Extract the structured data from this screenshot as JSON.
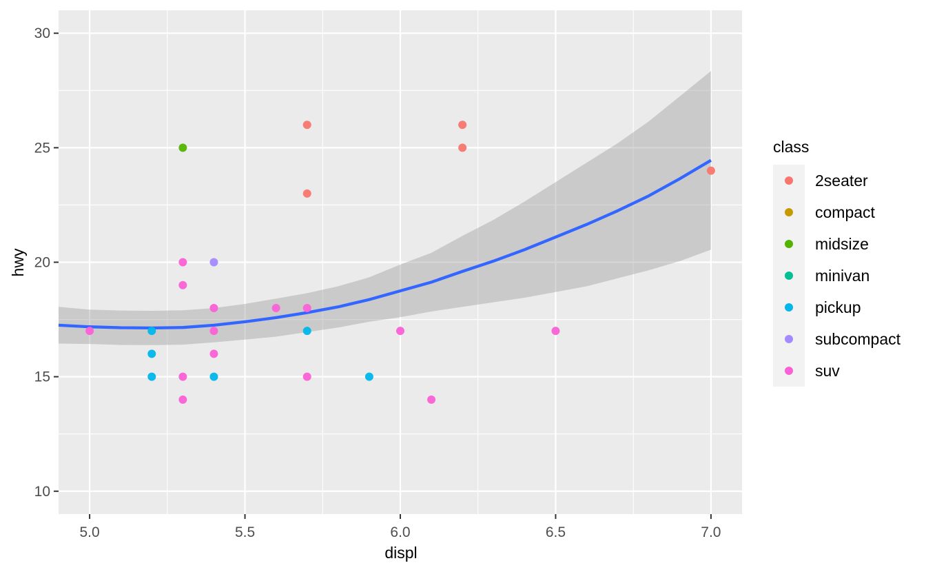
{
  "chart_data": {
    "type": "scatter",
    "xlabel": "displ",
    "ylabel": "hwy",
    "xlim": [
      4.9,
      7.1
    ],
    "ylim": [
      9,
      31
    ],
    "x_ticks": [
      5.0,
      5.5,
      6.0,
      6.5,
      7.0
    ],
    "x_tick_labels": [
      "5.0",
      "5.5",
      "6.0",
      "6.5",
      "7.0"
    ],
    "x_minor": [
      5.25,
      5.75,
      6.25,
      6.75
    ],
    "y_ticks": [
      10,
      15,
      20,
      25,
      30
    ],
    "y_tick_labels": [
      "10",
      "15",
      "20",
      "25",
      "30"
    ],
    "y_minor": [
      12.5,
      17.5,
      22.5,
      27.5
    ],
    "grid": true,
    "panel_background": "#ebebeb",
    "legend": {
      "title": "class",
      "placement": "right",
      "entries": [
        {
          "label": "2seater",
          "color": "#F8766D"
        },
        {
          "label": "compact",
          "color": "#C49A00"
        },
        {
          "label": "midsize",
          "color": "#53B400"
        },
        {
          "label": "minivan",
          "color": "#00C094"
        },
        {
          "label": "pickup",
          "color": "#00B6EB"
        },
        {
          "label": "subcompact",
          "color": "#A58AFF"
        },
        {
          "label": "suv",
          "color": "#FB61D7"
        }
      ]
    },
    "points": [
      {
        "x": 5.7,
        "y": 26,
        "class": "2seater"
      },
      {
        "x": 5.7,
        "y": 23,
        "class": "2seater"
      },
      {
        "x": 6.2,
        "y": 26,
        "class": "2seater"
      },
      {
        "x": 6.2,
        "y": 25,
        "class": "2seater"
      },
      {
        "x": 7.0,
        "y": 24,
        "class": "2seater"
      },
      {
        "x": 5.3,
        "y": 25,
        "class": "midsize"
      },
      {
        "x": 5.2,
        "y": 17,
        "class": "pickup"
      },
      {
        "x": 5.2,
        "y": 16,
        "class": "pickup"
      },
      {
        "x": 5.2,
        "y": 15,
        "class": "pickup"
      },
      {
        "x": 5.4,
        "y": 15,
        "class": "pickup"
      },
      {
        "x": 5.7,
        "y": 17,
        "class": "pickup"
      },
      {
        "x": 5.9,
        "y": 15,
        "class": "pickup"
      },
      {
        "x": 5.4,
        "y": 20,
        "class": "subcompact"
      },
      {
        "x": 5.0,
        "y": 17,
        "class": "suv"
      },
      {
        "x": 5.3,
        "y": 20,
        "class": "suv"
      },
      {
        "x": 5.3,
        "y": 19,
        "class": "suv"
      },
      {
        "x": 5.3,
        "y": 15,
        "class": "suv"
      },
      {
        "x": 5.3,
        "y": 14,
        "class": "suv"
      },
      {
        "x": 5.4,
        "y": 18,
        "class": "suv"
      },
      {
        "x": 5.4,
        "y": 17,
        "class": "suv"
      },
      {
        "x": 5.4,
        "y": 16,
        "class": "suv"
      },
      {
        "x": 5.6,
        "y": 18,
        "class": "suv"
      },
      {
        "x": 5.7,
        "y": 18,
        "class": "suv"
      },
      {
        "x": 5.7,
        "y": 15,
        "class": "suv"
      },
      {
        "x": 6.0,
        "y": 17,
        "class": "suv"
      },
      {
        "x": 6.1,
        "y": 14,
        "class": "suv"
      },
      {
        "x": 6.5,
        "y": 17,
        "class": "suv"
      }
    ],
    "smooth": {
      "method": "loess",
      "color": "#3366FF",
      "band_color": "#999999",
      "x": [
        4.9,
        5.0,
        5.1,
        5.2,
        5.3,
        5.4,
        5.5,
        5.6,
        5.7,
        5.8,
        5.9,
        6.0,
        6.1,
        6.2,
        6.3,
        6.4,
        6.5,
        6.6,
        6.7,
        6.8,
        6.9,
        7.0
      ],
      "fit": [
        17.25,
        17.18,
        17.14,
        17.13,
        17.15,
        17.25,
        17.4,
        17.58,
        17.8,
        18.05,
        18.37,
        18.75,
        19.13,
        19.6,
        20.05,
        20.55,
        21.1,
        21.65,
        22.25,
        22.9,
        23.65,
        24.45
      ],
      "lower": [
        16.45,
        16.43,
        16.39,
        16.38,
        16.4,
        16.5,
        16.62,
        16.75,
        16.95,
        17.15,
        17.4,
        17.6,
        17.85,
        18.05,
        18.25,
        18.45,
        18.7,
        18.95,
        19.3,
        19.65,
        20.05,
        20.55
      ],
      "upper": [
        18.05,
        17.93,
        17.89,
        17.88,
        17.9,
        18.0,
        18.18,
        18.41,
        18.65,
        18.95,
        19.34,
        19.9,
        20.41,
        21.15,
        21.85,
        22.65,
        23.5,
        24.35,
        25.2,
        26.15,
        27.25,
        28.35
      ]
    }
  }
}
